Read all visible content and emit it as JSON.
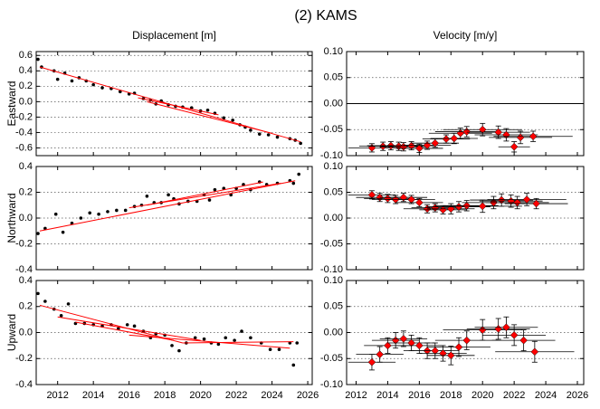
{
  "title": "(2) KAMS",
  "chart_data": [
    {
      "type": "scatter",
      "title": "Displacement [m]",
      "ylabel": "Eastward",
      "show_xtick_labels": false,
      "x": [
        2010.9,
        2011.1,
        2011.8,
        2012.0,
        2012.4,
        2012.8,
        2013.2,
        2013.6,
        2014.0,
        2014.5,
        2015.0,
        2015.5,
        2016.0,
        2016.3,
        2016.8,
        2017.2,
        2017.5,
        2017.8,
        2018.2,
        2018.6,
        2019.0,
        2019.5,
        2020.0,
        2020.4,
        2020.8,
        2021.3,
        2021.8,
        2022.2,
        2022.5,
        2022.8,
        2023.3,
        2023.8,
        2024.3,
        2025.0,
        2025.3,
        2025.6
      ],
      "values": [
        0.55,
        0.45,
        0.4,
        0.29,
        0.37,
        0.27,
        0.31,
        0.27,
        0.22,
        0.18,
        0.17,
        0.13,
        0.1,
        0.11,
        0.04,
        0.02,
        -0.03,
        0.01,
        -0.04,
        -0.06,
        -0.07,
        -0.08,
        -0.12,
        -0.11,
        -0.15,
        -0.21,
        -0.24,
        -0.3,
        -0.33,
        -0.37,
        -0.42,
        -0.43,
        -0.46,
        -0.48,
        -0.5,
        -0.54
      ],
      "color": "#000000",
      "fit_color": "#ff0000",
      "fits": [
        {
          "x": [
            2011.0,
            2025.6
          ],
          "values": [
            0.45,
            -0.52
          ]
        },
        {
          "x": [
            2016.5,
            2021.0
          ],
          "values": [
            0.05,
            -0.17
          ]
        },
        {
          "x": [
            2017.0,
            2024.0
          ],
          "values": [
            0.0,
            -0.41
          ]
        }
      ],
      "xlim": [
        2010.8,
        2026.25
      ],
      "xticks": [
        2012,
        2014,
        2016,
        2018,
        2020,
        2022,
        2024,
        2026
      ],
      "ylim": [
        -0.7,
        0.65
      ],
      "yticks": [
        0.6,
        0.4,
        0.2,
        {
          "value": 0,
          "label": "0.0"
        },
        -0.2,
        -0.4,
        -0.6
      ],
      "grid": true
    },
    {
      "type": "errorbar",
      "title": "Velocity [m/y]",
      "show_xtick_labels": false,
      "x": [
        2013.0,
        2013.7,
        2014.2,
        2014.7,
        2015.0,
        2015.5,
        2016.0,
        2016.5,
        2017.0,
        2017.7,
        2018.2,
        2018.6,
        2019.0,
        2020.0,
        2021.0,
        2021.5,
        2022.0,
        2022.4,
        2023.2
      ],
      "values": [
        -0.085,
        -0.082,
        -0.081,
        -0.082,
        -0.083,
        -0.081,
        -0.086,
        -0.08,
        -0.076,
        -0.068,
        -0.067,
        -0.057,
        -0.054,
        -0.05,
        -0.055,
        -0.06,
        -0.083,
        -0.065,
        -0.063
      ],
      "errors": [
        0.008,
        0.008,
        0.008,
        0.008,
        0.008,
        0.008,
        0.008,
        0.008,
        0.008,
        0.008,
        0.01,
        0.01,
        0.01,
        0.012,
        0.012,
        0.012,
        0.01,
        0.012,
        0.01
      ],
      "x_errors": [
        1.5,
        1.5,
        1.5,
        1.5,
        1.5,
        1.5,
        1.5,
        1.5,
        1.5,
        1.5,
        1.5,
        2,
        2,
        2.5,
        2,
        2,
        1,
        2,
        2.5
      ],
      "color": "#ff0000",
      "error_color": "#000000",
      "hline": 0,
      "xlim": [
        2011.4,
        2026.4
      ],
      "xticks": [
        2012,
        2014,
        2016,
        2018,
        2020,
        2022,
        2024,
        2026
      ],
      "ylim": [
        -0.1,
        0.1
      ],
      "yticks": [
        {
          "value": 0.1,
          "label": "0.10"
        },
        0.05,
        {
          "value": 0,
          "label": "0.00"
        },
        -0.05,
        {
          "value": -0.1,
          "label": "-0.10"
        }
      ],
      "grid": true
    },
    {
      "type": "scatter",
      "ylabel": "Northward",
      "show_xtick_labels": false,
      "x": [
        2010.9,
        2011.3,
        2011.9,
        2012.3,
        2012.8,
        2013.3,
        2013.8,
        2014.3,
        2014.8,
        2015.3,
        2015.8,
        2016.3,
        2016.7,
        2017.0,
        2017.4,
        2017.8,
        2018.2,
        2018.5,
        2018.8,
        2019.3,
        2019.8,
        2020.2,
        2020.5,
        2020.8,
        2021.3,
        2021.7,
        2022.0,
        2022.4,
        2022.8,
        2023.3,
        2023.7,
        2024.3,
        2025.0,
        2025.2,
        2025.5
      ],
      "values": [
        -0.12,
        -0.08,
        0.03,
        -0.11,
        -0.04,
        0.0,
        0.04,
        0.03,
        0.05,
        0.06,
        0.06,
        0.09,
        0.1,
        0.17,
        0.12,
        0.12,
        0.18,
        0.15,
        0.11,
        0.13,
        0.13,
        0.18,
        0.14,
        0.22,
        0.23,
        0.18,
        0.23,
        0.26,
        0.22,
        0.28,
        0.26,
        0.27,
        0.29,
        0.27,
        0.34
      ],
      "color": "#000000",
      "fit_color": "#ff0000",
      "fits": [
        {
          "x": [
            2011.0,
            2025.3
          ],
          "values": [
            -0.1,
            0.29
          ]
        },
        {
          "x": [
            2016.0,
            2024.5
          ],
          "values": [
            0.08,
            0.27
          ]
        },
        {
          "x": [
            2017.0,
            2023.5
          ],
          "values": [
            0.1,
            0.28
          ]
        }
      ],
      "xlim": [
        2010.8,
        2026.25
      ],
      "xticks": [
        2012,
        2014,
        2016,
        2018,
        2020,
        2022,
        2024,
        2026
      ],
      "ylim": [
        -0.4,
        0.4
      ],
      "yticks": [
        0.4,
        0.2,
        {
          "value": 0,
          "label": "0.0"
        },
        -0.2,
        -0.4
      ],
      "grid": true
    },
    {
      "type": "errorbar",
      "show_xtick_labels": false,
      "x": [
        2013.0,
        2013.5,
        2014.0,
        2014.5,
        2015.0,
        2015.5,
        2016.0,
        2016.5,
        2017.0,
        2017.5,
        2018.0,
        2018.5,
        2019.0,
        2020.0,
        2020.7,
        2021.2,
        2021.8,
        2022.2,
        2022.8,
        2023.4
      ],
      "values": [
        0.045,
        0.04,
        0.038,
        0.036,
        0.04,
        0.036,
        0.03,
        0.018,
        0.02,
        0.016,
        0.018,
        0.022,
        0.024,
        0.023,
        0.03,
        0.035,
        0.033,
        0.03,
        0.036,
        0.028
      ],
      "errors": [
        0.008,
        0.008,
        0.008,
        0.008,
        0.008,
        0.008,
        0.008,
        0.008,
        0.008,
        0.008,
        0.01,
        0.01,
        0.01,
        0.012,
        0.012,
        0.012,
        0.012,
        0.012,
        0.012,
        0.01
      ],
      "x_errors": [
        1.5,
        1.5,
        1.5,
        1.5,
        1.5,
        1.5,
        1.5,
        1.5,
        1.5,
        1.5,
        1.5,
        2,
        2,
        2.5,
        2,
        2,
        2,
        2,
        2.5,
        2
      ],
      "color": "#ff0000",
      "error_color": "#000000",
      "xlim": [
        2011.4,
        2026.4
      ],
      "xticks": [
        2012,
        2014,
        2016,
        2018,
        2020,
        2022,
        2024,
        2026
      ],
      "ylim": [
        -0.1,
        0.1
      ],
      "yticks": [
        {
          "value": 0.1,
          "label": "0.10"
        },
        0.05,
        {
          "value": 0,
          "label": "0.00"
        },
        -0.05,
        {
          "value": -0.1,
          "label": "-0.10"
        }
      ],
      "grid": true
    },
    {
      "type": "scatter",
      "ylabel": "Upward",
      "show_xtick_labels": true,
      "x": [
        2010.9,
        2011.3,
        2011.8,
        2012.2,
        2012.6,
        2013.0,
        2013.5,
        2014.0,
        2014.5,
        2015.0,
        2015.4,
        2015.9,
        2016.3,
        2016.8,
        2017.2,
        2017.5,
        2018.0,
        2018.4,
        2018.8,
        2019.2,
        2019.7,
        2020.2,
        2020.6,
        2021.0,
        2021.4,
        2021.9,
        2022.3,
        2022.8,
        2023.4,
        2023.9,
        2024.4,
        2025.0,
        2025.2,
        2025.4
      ],
      "values": [
        0.3,
        0.24,
        0.18,
        0.13,
        0.22,
        0.07,
        0.07,
        0.06,
        0.05,
        0.06,
        0.03,
        0.06,
        0.05,
        0.01,
        -0.04,
        -0.01,
        -0.02,
        -0.1,
        -0.14,
        -0.08,
        -0.04,
        -0.05,
        -0.08,
        -0.09,
        -0.04,
        -0.06,
        0.01,
        -0.04,
        -0.08,
        -0.13,
        -0.13,
        -0.08,
        -0.25,
        -0.08
      ],
      "color": "#000000",
      "fit_color": "#ff0000",
      "fits": [
        {
          "x": [
            2011.0,
            2019.0
          ],
          "values": [
            0.21,
            -0.08
          ]
        },
        {
          "x": [
            2019.0,
            2025.2
          ],
          "values": [
            -0.08,
            -0.07
          ]
        },
        {
          "x": [
            2012.0,
            2020.0
          ],
          "values": [
            0.12,
            -0.06
          ]
        },
        {
          "x": [
            2016.0,
            2025.0
          ],
          "values": [
            -0.02,
            -0.12
          ]
        },
        {
          "x": [
            2013.0,
            2018.5
          ],
          "values": [
            0.08,
            -0.06
          ]
        }
      ],
      "xlim": [
        2010.8,
        2026.25
      ],
      "xticks": [
        2012,
        2014,
        2016,
        2018,
        2020,
        2022,
        2024,
        2026
      ],
      "ylim": [
        -0.4,
        0.4
      ],
      "yticks": [
        0.4,
        0.2,
        {
          "value": 0,
          "label": "0.0"
        },
        -0.2,
        -0.4
      ],
      "grid": true
    },
    {
      "type": "errorbar",
      "show_xtick_labels": true,
      "x": [
        2013.0,
        2013.5,
        2014.0,
        2014.5,
        2015.0,
        2015.5,
        2016.0,
        2016.5,
        2017.0,
        2017.5,
        2018.0,
        2018.5,
        2019.0,
        2020.0,
        2021.0,
        2021.5,
        2022.0,
        2022.6,
        2023.3
      ],
      "values": [
        -0.057,
        -0.042,
        -0.025,
        -0.015,
        -0.012,
        -0.02,
        -0.025,
        -0.035,
        -0.035,
        -0.04,
        -0.044,
        -0.028,
        -0.015,
        0.005,
        0.007,
        0.01,
        -0.005,
        -0.015,
        -0.037
      ],
      "errors": [
        0.015,
        0.015,
        0.015,
        0.015,
        0.015,
        0.015,
        0.015,
        0.015,
        0.015,
        0.015,
        0.018,
        0.018,
        0.018,
        0.02,
        0.02,
        0.02,
        0.02,
        0.02,
        0.02
      ],
      "x_errors": [
        1.5,
        1.5,
        1.5,
        1.5,
        1.5,
        1.5,
        1.5,
        1.5,
        1.5,
        1.5,
        1.5,
        2,
        2,
        2.5,
        2,
        2,
        2,
        2,
        2.5
      ],
      "color": "#ff0000",
      "error_color": "#000000",
      "xlim": [
        2011.4,
        2026.4
      ],
      "xticks": [
        2012,
        2014,
        2016,
        2018,
        2020,
        2022,
        2024,
        2026
      ],
      "ylim": [
        -0.1,
        0.1
      ],
      "yticks": [
        {
          "value": 0.1,
          "label": "0.10"
        },
        0.05,
        {
          "value": 0,
          "label": "0.00"
        },
        -0.05,
        {
          "value": -0.1,
          "label": "-0.10"
        }
      ],
      "grid": true
    }
  ]
}
